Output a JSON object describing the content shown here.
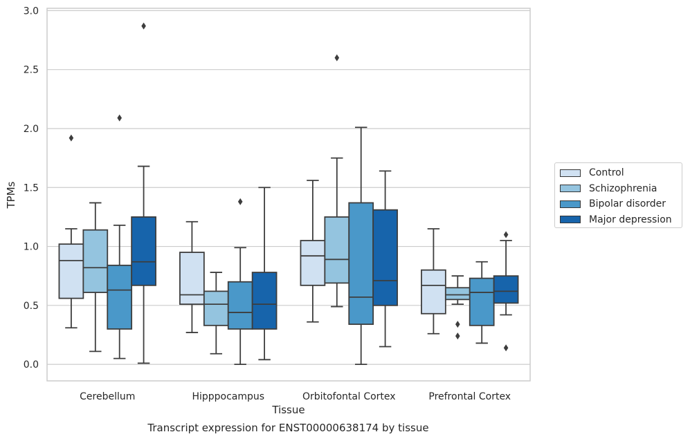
{
  "chart_data": {
    "type": "box",
    "title": "",
    "caption": "Transcript expression for ENST00000638174 by tissue",
    "xlabel": "Tissue",
    "ylabel": "TPMs",
    "ylim": [
      -0.14,
      3.02
    ],
    "yticks": [
      "0.0",
      "0.5",
      "1.0",
      "1.5",
      "2.0",
      "2.5",
      "3.0"
    ],
    "ytick_values": [
      0,
      0.5,
      1.0,
      1.5,
      2.0,
      2.5,
      3.0
    ],
    "grid": "horizontal",
    "legend_position": "right",
    "categories": [
      "Cerebellum",
      "Hipppocampus",
      "Orbitofontal Cortex",
      "Prefrontal Cortex"
    ],
    "series": [
      {
        "name": "Control",
        "color": "#d0e1f2",
        "boxes": [
          {
            "whislo": 0.31,
            "q1": 0.56,
            "med": 0.88,
            "q3": 1.02,
            "whishi": 1.15,
            "fliers": [
              1.92
            ]
          },
          {
            "whislo": 0.27,
            "q1": 0.51,
            "med": 0.59,
            "q3": 0.95,
            "whishi": 1.21,
            "fliers": []
          },
          {
            "whislo": 0.36,
            "q1": 0.67,
            "med": 0.92,
            "q3": 1.05,
            "whishi": 1.56,
            "fliers": []
          },
          {
            "whislo": 0.26,
            "q1": 0.43,
            "med": 0.67,
            "q3": 0.8,
            "whishi": 1.15,
            "fliers": []
          }
        ]
      },
      {
        "name": "Schizophrenia",
        "color": "#94c4df",
        "boxes": [
          {
            "whislo": 0.11,
            "q1": 0.61,
            "med": 0.82,
            "q3": 1.14,
            "whishi": 1.37,
            "fliers": []
          },
          {
            "whislo": 0.09,
            "q1": 0.33,
            "med": 0.51,
            "q3": 0.62,
            "whishi": 0.78,
            "fliers": []
          },
          {
            "whislo": 0.49,
            "q1": 0.69,
            "med": 0.89,
            "q3": 1.25,
            "whishi": 1.75,
            "fliers": [
              2.6
            ]
          },
          {
            "whislo": 0.51,
            "q1": 0.55,
            "med": 0.59,
            "q3": 0.65,
            "whishi": 0.75,
            "fliers": [
              0.34,
              0.24
            ]
          }
        ]
      },
      {
        "name": "Bipolar disorder",
        "color": "#4a98c9",
        "boxes": [
          {
            "whislo": 0.05,
            "q1": 0.3,
            "med": 0.63,
            "q3": 0.84,
            "whishi": 1.18,
            "fliers": [
              2.09
            ]
          },
          {
            "whislo": 0.0,
            "q1": 0.3,
            "med": 0.44,
            "q3": 0.7,
            "whishi": 0.99,
            "fliers": [
              1.38
            ]
          },
          {
            "whislo": 0.0,
            "q1": 0.34,
            "med": 0.57,
            "q3": 1.37,
            "whishi": 2.01,
            "fliers": []
          },
          {
            "whislo": 0.18,
            "q1": 0.33,
            "med": 0.61,
            "q3": 0.73,
            "whishi": 0.87,
            "fliers": []
          }
        ]
      },
      {
        "name": "Major depression",
        "color": "#1764ab",
        "boxes": [
          {
            "whislo": 0.01,
            "q1": 0.67,
            "med": 0.87,
            "q3": 1.25,
            "whishi": 1.68,
            "fliers": [
              2.87
            ]
          },
          {
            "whislo": 0.04,
            "q1": 0.3,
            "med": 0.51,
            "q3": 0.78,
            "whishi": 1.5,
            "fliers": []
          },
          {
            "whislo": 0.15,
            "q1": 0.5,
            "med": 0.71,
            "q3": 1.31,
            "whishi": 1.64,
            "fliers": []
          },
          {
            "whislo": 0.42,
            "q1": 0.52,
            "med": 0.62,
            "q3": 0.75,
            "whishi": 1.05,
            "fliers": [
              1.1,
              0.14
            ]
          }
        ]
      }
    ]
  }
}
